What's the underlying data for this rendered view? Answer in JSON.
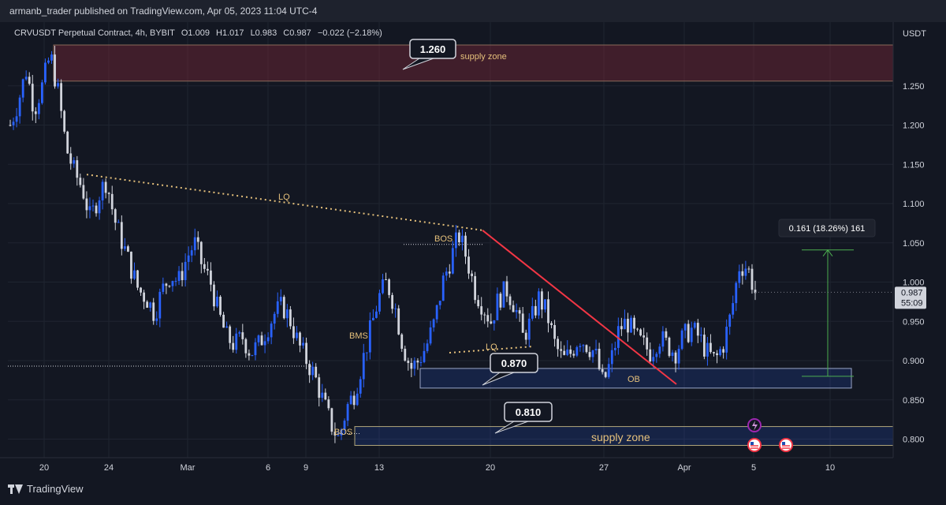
{
  "header": {
    "published": "armanb_trader published on TradingView.com, Apr 05, 2023 11:04 UTC-4"
  },
  "symbol": {
    "name": "CRVUSDT Perpetual Contract, 4h, BYBIT",
    "open": "O1.009",
    "high": "H1.017",
    "low": "L0.983",
    "close": "C0.987",
    "change": "−0.022 (−2.18%)"
  },
  "axis": {
    "currency": "USDT",
    "y_ticks": [
      "1.250",
      "1.200",
      "1.150",
      "1.100",
      "1.050",
      "1.000",
      "0.950",
      "0.900",
      "0.850",
      "0.800"
    ],
    "x_ticks": [
      "20",
      "24",
      "Mar",
      "6",
      "9",
      "13",
      "20",
      "27",
      "Apr",
      "5",
      "10"
    ]
  },
  "price_tag": {
    "price": "0.987",
    "countdown": "55:09"
  },
  "annotations": {
    "label_1260": "1.260",
    "supply_zone_top": "supply zone",
    "lq_top": "LQ",
    "bos_top": "BOS",
    "bms": "BMS",
    "lq_mid": "LQ",
    "label_0870": "0.870",
    "ob": "OB",
    "label_0810": "0.810",
    "bos_bottom": "BOS",
    "supply_zone_bottom": "supply zone",
    "measure": "0.161 (18.26%) 161"
  },
  "footer": {
    "brand": "TradingView"
  },
  "colors": {
    "background": "#131722",
    "bull": "#2962ff",
    "bear": "#d1d4dc",
    "trendline": "#f23645",
    "dotted": "#e5c07b",
    "measure": "#4caf50"
  },
  "chart_data": {
    "type": "candlestick",
    "title": "CRVUSDT Perpetual Contract, 4h, BYBIT",
    "x_labels": [
      "20",
      "24",
      "Mar",
      "6",
      "9",
      "13",
      "20",
      "27",
      "Apr",
      "5",
      "10"
    ],
    "ylim": [
      0.785,
      1.315
    ],
    "close_path": [
      1.2,
      1.23,
      1.27,
      1.22,
      1.25,
      1.29,
      1.24,
      1.17,
      1.14,
      1.12,
      1.08,
      1.11,
      1.13,
      1.08,
      1.05,
      1.02,
      0.99,
      0.98,
      0.96,
      0.99,
      1.01,
      1.0,
      1.03,
      1.05,
      1.02,
      1.0,
      0.96,
      0.93,
      0.92,
      0.93,
      0.91,
      0.92,
      0.94,
      0.96,
      0.97,
      0.95,
      0.92,
      0.9,
      0.88,
      0.85,
      0.82,
      0.8,
      0.84,
      0.86,
      0.9,
      0.94,
      0.98,
      1.0,
      0.97,
      0.92,
      0.89,
      0.9,
      0.92,
      0.95,
      1.0,
      1.03,
      1.06,
      1.03,
      0.99,
      0.97,
      0.95,
      0.98,
      0.99,
      0.97,
      0.93,
      0.95,
      0.98,
      0.96,
      0.92,
      0.9,
      0.91,
      0.93,
      0.92,
      0.91,
      0.87,
      0.9,
      0.94,
      0.95,
      0.93,
      0.92,
      0.91,
      0.93,
      0.92,
      0.91,
      0.93,
      0.94,
      0.93,
      0.91,
      0.9,
      0.92,
      0.96,
      1.02,
      1.02,
      0.987
    ],
    "supply_zone_top": [
      1.256,
      1.302
    ],
    "demand_zone_ob": [
      0.865,
      0.89
    ],
    "supply_zone_bottom": [
      0.792,
      0.816
    ],
    "current_price": 0.987,
    "measure": {
      "from": 0.88,
      "to": 1.041,
      "text": "0.161 (18.26%) 161"
    }
  }
}
